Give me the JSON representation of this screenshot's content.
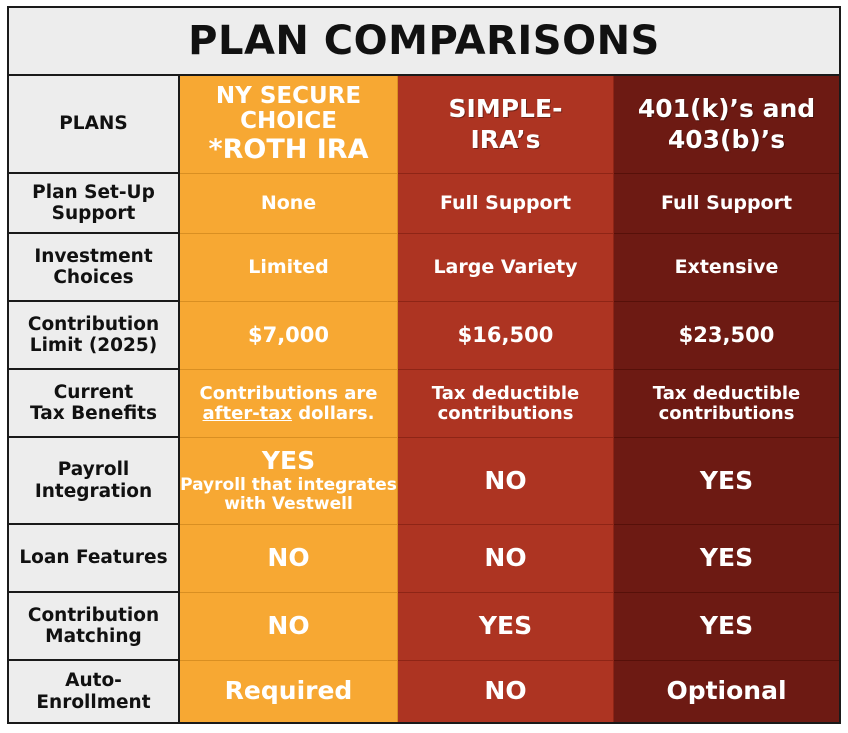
{
  "title": "PLAN COMPARISONS",
  "header": {
    "label": "PLANS",
    "plan1_line1": "NY SECURE",
    "plan1_line2": "CHOICE",
    "plan1_line3": "*ROTH IRA",
    "plan2_line1": "SIMPLE-",
    "plan2_line2": "IRA’s",
    "plan3_line1": "401(k)’s and",
    "plan3_line2": "403(b)’s"
  },
  "rows": [
    {
      "label1": "Plan Set-Up",
      "label2": "Support",
      "v1": "None",
      "v2": "Full Support",
      "v3": "Full Support"
    },
    {
      "label1": "Investment",
      "label2": "Choices",
      "v1": "Limited",
      "v2": "Large Variety",
      "v3": "Extensive"
    },
    {
      "label1": "Contribution",
      "label2": "Limit (2025)",
      "v1": "$7,000",
      "v2": "$16,500",
      "v3": "$23,500"
    },
    {
      "label1": "Current",
      "label2": "Tax Benefits",
      "v1_line1": "Contributions are",
      "v1_underlined": "after-tax",
      "v1_after": " dollars.",
      "v2_line1": "Tax deductible",
      "v2_line2": "contributions",
      "v3_line1": "Tax deductible",
      "v3_line2": "contributions"
    },
    {
      "label1": "Payroll",
      "label2": "Integration",
      "v1": "YES",
      "v1_sub1": "Payroll that integrates",
      "v1_sub2": "with Vestwell",
      "v2": "NO",
      "v3": "YES"
    },
    {
      "label": "Loan Features",
      "v1": "NO",
      "v2": "NO",
      "v3": "YES"
    },
    {
      "label1": "Contribution",
      "label2": "Matching",
      "v1": "NO",
      "v2": "YES",
      "v3": "YES"
    },
    {
      "label1": "Auto-",
      "label2": "Enrollment",
      "v1": "Required",
      "v2": "NO",
      "v3": "Optional"
    }
  ],
  "colors": {
    "plan1": "#f7a833",
    "plan2": "#ad3422",
    "plan3": "#6d1a13",
    "label_bg": "#ededed"
  }
}
